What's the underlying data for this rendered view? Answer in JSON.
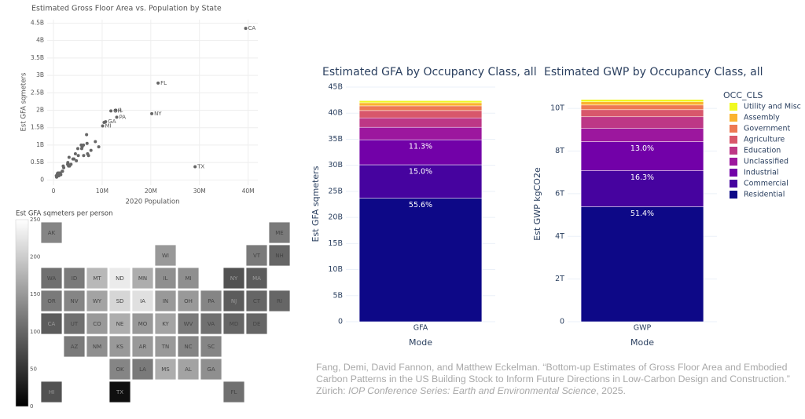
{
  "chart_data": [
    {
      "type": "scatter",
      "title": "Estimated Gross Floor Area vs. Population by State",
      "x_label": "2020 Population",
      "y_label": "Est GFA sqmeters",
      "color": "#666666",
      "xlim": [
        -1300000,
        42000000
      ],
      "xticks": [
        0,
        {
          "value": 10000000,
          "label": "10M"
        },
        {
          "value": 20000000,
          "label": "20M"
        },
        {
          "value": 30000000,
          "label": "30M"
        },
        {
          "value": 40000000,
          "label": "40M"
        }
      ],
      "ylim": [
        -150000000,
        4600000000
      ],
      "yticks": [
        0,
        {
          "value": 500000000,
          "label": "0.5B"
        },
        {
          "value": 1000000000,
          "label": "1B"
        },
        {
          "value": 1500000000,
          "label": "1.5B"
        },
        {
          "value": 2000000000,
          "label": "2B"
        },
        {
          "value": 2500000000,
          "label": "2.5B"
        },
        {
          "value": 3000000000,
          "label": "3B"
        },
        {
          "value": 3500000000,
          "label": "3.5B"
        },
        {
          "value": 4000000000,
          "label": "4B"
        },
        {
          "value": 4500000000,
          "label": "4.5B"
        }
      ],
      "labels": [
        "CA",
        "TX",
        "FL",
        "NY",
        "PA",
        "IL",
        "OH",
        "GA",
        null,
        "MI",
        null,
        null,
        null,
        null,
        null,
        null,
        null,
        null,
        null,
        null,
        null,
        null,
        null,
        null,
        null,
        null,
        null,
        null,
        null,
        null,
        null,
        null,
        null,
        null,
        null,
        null,
        null,
        null,
        null,
        null,
        null,
        null,
        null,
        null,
        null,
        null,
        null,
        null,
        null,
        null
      ],
      "x": [
        39500000,
        29100000,
        21500000,
        20200000,
        13000000,
        12800000,
        11800000,
        10700000,
        10400000,
        10100000,
        9300000,
        8600000,
        7700000,
        7200000,
        7000000,
        6900000,
        6800000,
        6200000,
        6150000,
        5900000,
        5800000,
        5700000,
        5100000,
        5000000,
        4700000,
        4500000,
        4200000,
        4000000,
        3600000,
        3300000,
        3200000,
        3100000,
        3000000,
        2950000,
        2900000,
        2100000,
        2000000,
        1850000,
        1800000,
        1500000,
        1400000,
        1350000,
        1100000,
        1080000,
        1000000,
        900000,
        800000,
        730000,
        640000,
        580000
      ],
      "y": [
        4350000000,
        380000000,
        2780000000,
        1900000000,
        1800000000,
        2000000000,
        1980000000,
        1670000000,
        1650000000,
        1550000000,
        950000000,
        1100000000,
        850000000,
        700000000,
        750000000,
        1050000000,
        1300000000,
        700000000,
        1000000000,
        950000000,
        900000000,
        1000000000,
        700000000,
        900000000,
        550000000,
        750000000,
        600000000,
        600000000,
        450000000,
        400000000,
        650000000,
        400000000,
        450000000,
        500000000,
        450000000,
        350000000,
        400000000,
        250000000,
        250000000,
        150000000,
        200000000,
        200000000,
        120000000,
        200000000,
        120000000,
        200000000,
        180000000,
        100000000,
        80000000,
        120000000
      ]
    },
    {
      "type": "choropleth",
      "colorbar_title": "Est GFA sqmeters per person",
      "colorscale": [
        "#000000",
        "#ffffff"
      ],
      "zlim": [
        0,
        250
      ],
      "colorbar_ticks": [
        0,
        50,
        100,
        150,
        200,
        250
      ],
      "states": [
        "AK",
        "ME",
        "WI",
        "VT",
        "NH",
        "WA",
        "ID",
        "MT",
        "ND",
        "MN",
        "IL",
        "MI",
        "NY",
        "MA",
        "OR",
        "NV",
        "WY",
        "SD",
        "IA",
        "IN",
        "OH",
        "PA",
        "NJ",
        "CT",
        "RI",
        "CA",
        "UT",
        "CO",
        "NE",
        "MO",
        "KY",
        "WV",
        "VA",
        "MD",
        "DE",
        "AZ",
        "NM",
        "KS",
        "AR",
        "TN",
        "NC",
        "SC",
        "OK",
        "LA",
        "MS",
        "AL",
        "GA",
        "HI",
        "TX",
        "FL"
      ],
      "values": [
        130,
        120,
        150,
        120,
        100,
        110,
        120,
        180,
        230,
        170,
        140,
        140,
        80,
        90,
        120,
        130,
        160,
        210,
        220,
        150,
        150,
        130,
        90,
        100,
        100,
        90,
        110,
        150,
        170,
        150,
        160,
        120,
        110,
        100,
        100,
        120,
        140,
        150,
        150,
        150,
        130,
        130,
        130,
        120,
        170,
        160,
        140,
        80,
        15,
        110
      ]
    },
    {
      "type": "stacked_bar",
      "title": "Estimated GFA by Occupancy Class, all",
      "x_label": "Mode",
      "y_label": "Est GFA sqmeters",
      "categories": [
        "GFA"
      ],
      "ylim": [
        0,
        45000000000
      ],
      "yticks": [
        0,
        {
          "value": 5000000000,
          "label": "5B"
        },
        {
          "value": 10000000000,
          "label": "10B"
        },
        {
          "value": 15000000000,
          "label": "15B"
        },
        {
          "value": 20000000000,
          "label": "20B"
        },
        {
          "value": 25000000000,
          "label": "25B"
        },
        {
          "value": 30000000000,
          "label": "30B"
        },
        {
          "value": 35000000000,
          "label": "35B"
        },
        {
          "value": 40000000000,
          "label": "40B"
        },
        {
          "value": 45000000000,
          "label": "45B"
        }
      ],
      "series": [
        {
          "name": "Residential",
          "color": "#0d0887",
          "values": [
            23700000000
          ],
          "text": [
            "55.6%"
          ]
        },
        {
          "name": "Commercial",
          "color": "#46039f",
          "values": [
            6400000000
          ],
          "text": [
            "15.0%"
          ]
        },
        {
          "name": "Industrial",
          "color": "#7201a8",
          "values": [
            4800000000
          ],
          "text": [
            "11.3%"
          ]
        },
        {
          "name": "Unclassified",
          "color": "#9c179e",
          "values": [
            2400000000
          ]
        },
        {
          "name": "Education",
          "color": "#bd3786",
          "values": [
            1800000000
          ]
        },
        {
          "name": "Agriculture",
          "color": "#d8576b",
          "values": [
            1400000000
          ]
        },
        {
          "name": "Government",
          "color": "#ed7953",
          "values": [
            900000000
          ]
        },
        {
          "name": "Assembly",
          "color": "#fbb32f",
          "values": [
            600000000
          ]
        },
        {
          "name": "Utility and Misc",
          "color": "#f0f921",
          "values": [
            400000000
          ]
        }
      ]
    },
    {
      "type": "stacked_bar",
      "title": "Estimated GWP by Occupancy Class, all",
      "x_label": "Mode",
      "y_label": "Est GWP kgCO2e",
      "categories": [
        "GWP"
      ],
      "ylim": [
        0,
        11000000000000
      ],
      "legend_title": "OCC_CLS",
      "legend": "right",
      "yticks": [
        0,
        {
          "value": 2000000000000,
          "label": "2T"
        },
        {
          "value": 4000000000000,
          "label": "4T"
        },
        {
          "value": 6000000000000,
          "label": "6T"
        },
        {
          "value": 8000000000000,
          "label": "8T"
        },
        {
          "value": 10000000000000,
          "label": "10T"
        }
      ],
      "series": [
        {
          "name": "Residential",
          "color": "#0d0887",
          "values": [
            5390000000000
          ],
          "text": [
            "51.4%"
          ]
        },
        {
          "name": "Commercial",
          "color": "#46039f",
          "values": [
            1690000000000
          ],
          "text": [
            "16.3%"
          ]
        },
        {
          "name": "Industrial",
          "color": "#7201a8",
          "values": [
            1360000000000
          ],
          "text": [
            "13.0%"
          ]
        },
        {
          "name": "Unclassified",
          "color": "#9c179e",
          "values": [
            620000000000
          ]
        },
        {
          "name": "Education",
          "color": "#bd3786",
          "values": [
            550000000000
          ]
        },
        {
          "name": "Agriculture",
          "color": "#d8576b",
          "values": [
            330000000000
          ]
        },
        {
          "name": "Government",
          "color": "#ed7953",
          "values": [
            220000000000
          ]
        },
        {
          "name": "Assembly",
          "color": "#fbb32f",
          "values": [
            150000000000
          ]
        },
        {
          "name": "Utility and Misc",
          "color": "#f0f921",
          "values": [
            110000000000
          ]
        }
      ]
    }
  ],
  "citation": {
    "authors": "Fang, Demi, David Fannon, and Matthew Eckelman. “Bottom-up Estimates of Gross Floor Area and Embodied Carbon Patterns in the US Building Stock to Inform Future Directions in Low-Carbon Design and Construction.” Zürich: ",
    "journal": "IOP Conference Series: Earth and Environmental Science",
    "year": ", 2025."
  }
}
